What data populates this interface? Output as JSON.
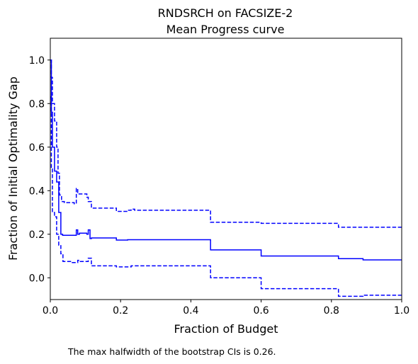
{
  "chart_data": {
    "type": "line",
    "title": "RNDSRCH on FACSIZE-2",
    "subtitle": "Mean Progress curve",
    "xlabel": "Fraction of Budget",
    "ylabel": "Fraction of Initial Optimality Gap",
    "xlim": [
      0,
      1
    ],
    "ylim": [
      -0.1,
      1.1
    ],
    "xticks": [
      "0.0",
      "0.2",
      "0.4",
      "0.6",
      "0.8",
      "1.0"
    ],
    "xtick_values": [
      0,
      0.2,
      0.4,
      0.6,
      0.8,
      1.0
    ],
    "yticks": [
      "0.0",
      "0.2",
      "0.4",
      "0.6",
      "0.8",
      "1.0"
    ],
    "ytick_values": [
      0,
      0.2,
      0.4,
      0.6,
      0.8,
      1.0
    ],
    "grid": false,
    "color": "#0000ff",
    "series": [
      {
        "style": "solid",
        "x": [
          0,
          0.003,
          0.006,
          0.012,
          0.018,
          0.024,
          0.03,
          0.035,
          0.06,
          0.074,
          0.078,
          0.083,
          0.104,
          0.108,
          0.113,
          0.117,
          0.188,
          0.22,
          0.456,
          0.6,
          0.82,
          0.89,
          1.0
        ],
        "y": [
          1.0,
          0.76,
          0.6,
          0.49,
          0.44,
          0.3,
          0.2,
          0.195,
          0.195,
          0.22,
          0.2,
          0.205,
          0.2,
          0.22,
          0.18,
          0.183,
          0.173,
          0.175,
          0.128,
          0.1,
          0.088,
          0.082,
          0.082
        ]
      },
      {
        "style": "dashed",
        "x": [
          0,
          0.003,
          0.006,
          0.012,
          0.018,
          0.022,
          0.026,
          0.032,
          0.04,
          0.068,
          0.074,
          0.078,
          0.083,
          0.104,
          0.108,
          0.117,
          0.188,
          0.22,
          0.23,
          0.24,
          0.456,
          0.6,
          0.82,
          1.0
        ],
        "y": [
          1.0,
          0.92,
          0.8,
          0.72,
          0.6,
          0.48,
          0.38,
          0.35,
          0.345,
          0.34,
          0.41,
          0.385,
          0.385,
          0.37,
          0.35,
          0.32,
          0.305,
          0.31,
          0.315,
          0.31,
          0.255,
          0.25,
          0.232,
          0.232
        ]
      },
      {
        "style": "dashed",
        "x": [
          0,
          0.003,
          0.006,
          0.012,
          0.018,
          0.024,
          0.03,
          0.036,
          0.06,
          0.074,
          0.078,
          0.083,
          0.104,
          0.108,
          0.117,
          0.188,
          0.22,
          0.23,
          0.456,
          0.6,
          0.82,
          0.89,
          1.0
        ],
        "y": [
          0.83,
          0.5,
          0.3,
          0.28,
          0.2,
          0.15,
          0.11,
          0.075,
          0.07,
          0.07,
          0.08,
          0.075,
          0.075,
          0.09,
          0.055,
          0.05,
          0.05,
          0.055,
          0.0,
          -0.05,
          -0.085,
          -0.08,
          -0.08
        ]
      }
    ],
    "note": "The max halfwidth of the bootstrap CIs is 0.26."
  }
}
